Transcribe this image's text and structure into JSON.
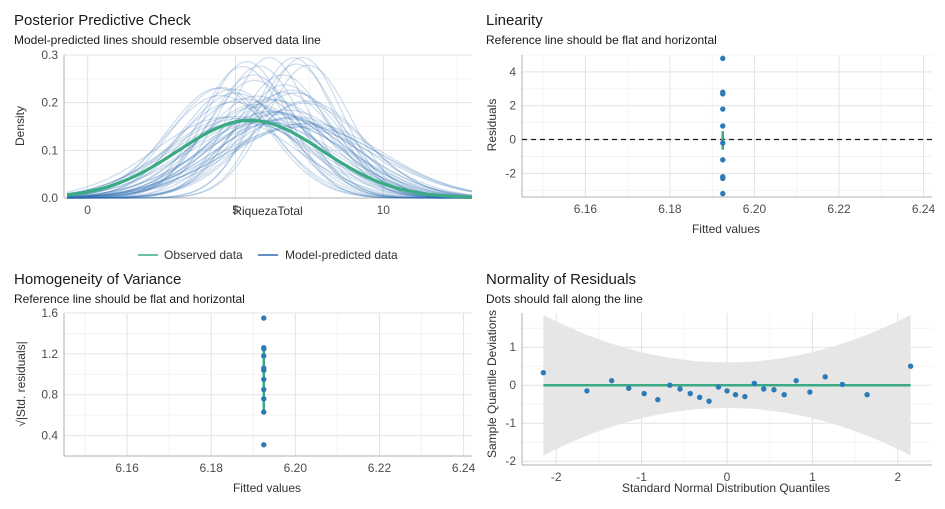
{
  "colors": {
    "observed": "#3aaa85",
    "predicted": "#2f6fb0",
    "points": "#2c7bb6",
    "ref_line": "#1a1a1a",
    "band": "#e6e6e6"
  },
  "chart_data": [
    {
      "type": "line",
      "title": "Posterior Predictive Check",
      "subtitle": "Model-predicted lines should resemble observed data line",
      "xlabel": "RiquezaTotal",
      "ylabel": "Density",
      "xlim": [
        -0.8,
        13.0
      ],
      "ylim": [
        0,
        0.3
      ],
      "x_ticks": [
        "0",
        "5",
        "10"
      ],
      "y_ticks": [
        "0.0",
        "0.1",
        "0.2",
        "0.3"
      ],
      "legend": {
        "position": "bottom",
        "items": [
          "Observed data",
          "Model-predicted data"
        ]
      },
      "series": [
        {
          "name": "Observed data",
          "dist": "normal",
          "mean": 5.5,
          "sd": 2.45,
          "x_range": [
            -0.7,
            13
          ]
        },
        {
          "name": "Model-predicted data",
          "draws": 50,
          "mean_range": [
            4.4,
            7.6
          ],
          "sd_range": [
            1.35,
            2.7
          ],
          "x_range": [
            -0.7,
            13
          ]
        }
      ]
    },
    {
      "type": "scatter",
      "title": "Linearity",
      "subtitle": "Reference line should be flat and horizontal",
      "xlabel": "Fitted values",
      "ylabel": "Residuals",
      "xlim": [
        6.145,
        6.242
      ],
      "ylim": [
        -3.4,
        5.0
      ],
      "x_ticks": [
        "6.16",
        "6.18",
        "6.20",
        "6.22",
        "6.24"
      ],
      "y_ticks": [
        "-2",
        "0",
        "2",
        "4"
      ],
      "reference_line": 0,
      "x": [
        6.1925,
        6.1925,
        6.1925,
        6.1925,
        6.1925,
        6.1925,
        6.1925,
        6.1925,
        6.1925,
        6.1925
      ],
      "y": [
        4.8,
        2.8,
        2.7,
        1.8,
        0.8,
        -0.2,
        -1.2,
        -2.2,
        -2.3,
        -3.2
      ],
      "smooth_segment": [
        -0.6,
        0.5
      ]
    },
    {
      "type": "scatter",
      "title": "Homogeneity of Variance",
      "subtitle": "Reference line should be flat and horizontal",
      "xlabel": "Fitted values",
      "ylabel": "√|Std. residuals|",
      "xlim": [
        6.145,
        6.242
      ],
      "ylim": [
        0.2,
        1.6
      ],
      "x_ticks": [
        "6.16",
        "6.18",
        "6.20",
        "6.22",
        "6.24"
      ],
      "y_ticks": [
        "0.4",
        "0.8",
        "1.2",
        "1.6"
      ],
      "x": [
        6.1925,
        6.1925,
        6.1925,
        6.1925,
        6.1925,
        6.1925,
        6.1925,
        6.1925,
        6.1925,
        6.1925,
        6.1925
      ],
      "y": [
        1.55,
        1.26,
        1.25,
        1.18,
        1.06,
        1.04,
        0.95,
        0.85,
        0.76,
        0.63,
        0.31
      ],
      "smooth_range": [
        0.65,
        1.24
      ]
    },
    {
      "type": "scatter",
      "title": "Normality of Residuals",
      "subtitle": "Dots should fall along the line",
      "xlabel": "Standard Normal Distribution Quantiles",
      "ylabel": "Sample Quantile Deviations",
      "xlim": [
        -2.4,
        2.4
      ],
      "ylim": [
        -2.1,
        1.9
      ],
      "x_ticks": [
        "-2",
        "-1",
        "0",
        "1",
        "2"
      ],
      "y_ticks": [
        "-2",
        "-1",
        "0",
        "1"
      ],
      "reference_line": 0,
      "band_halfwidth": {
        "center": 0.6,
        "edge": 1.85
      },
      "x": [
        -2.15,
        -1.64,
        -1.35,
        -1.15,
        -0.97,
        -0.81,
        -0.67,
        -0.55,
        -0.43,
        -0.32,
        -0.21,
        -0.1,
        0.0,
        0.1,
        0.21,
        0.32,
        0.43,
        0.55,
        0.67,
        0.81,
        0.97,
        1.15,
        1.35,
        1.64,
        2.15
      ],
      "y": [
        0.33,
        -0.15,
        0.12,
        -0.08,
        -0.22,
        -0.38,
        0.0,
        -0.1,
        -0.22,
        -0.32,
        -0.42,
        -0.05,
        -0.15,
        -0.25,
        -0.3,
        0.05,
        -0.1,
        -0.12,
        -0.25,
        0.12,
        -0.18,
        0.22,
        0.02,
        -0.25,
        0.5
      ]
    }
  ]
}
